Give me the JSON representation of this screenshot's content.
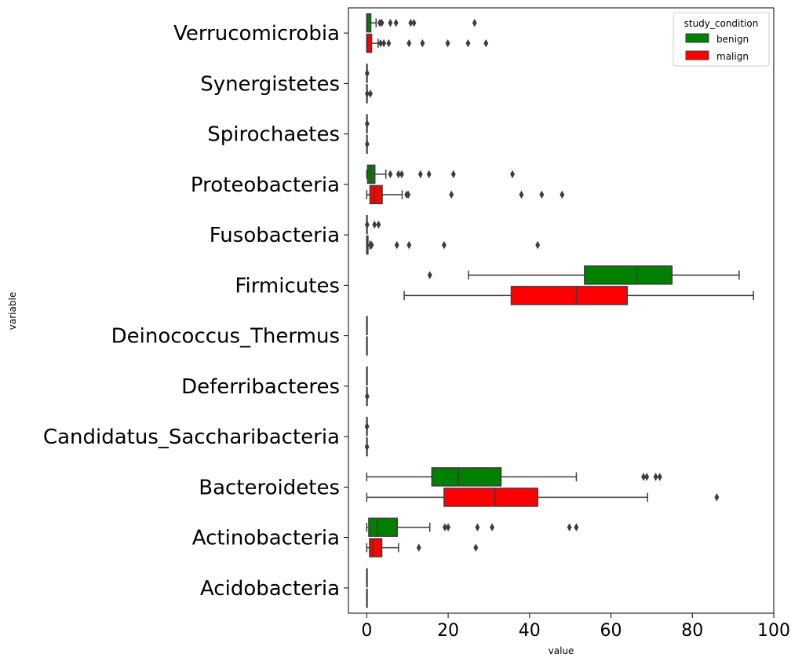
{
  "chart_data": {
    "type": "boxplot",
    "orientation": "horizontal",
    "xlabel": "value",
    "ylabel": "variable",
    "xlim": [
      -4.5,
      100
    ],
    "xticks": [
      0,
      20,
      40,
      60,
      80,
      100
    ],
    "xtick_labels": [
      "0",
      "20",
      "40",
      "60",
      "80",
      "100"
    ],
    "legend": {
      "title": "study_condition",
      "placement": "top-right",
      "entries": [
        {
          "label": "benign",
          "color": "#008000"
        },
        {
          "label": "malign",
          "color": "#ff0000"
        }
      ]
    },
    "categories": [
      "Verrucomicrobia",
      "Synergistetes",
      "Spirochaetes",
      "Proteobacteria",
      "Fusobacteria",
      "Firmicutes",
      "Deinococcus_Thermus",
      "Deferribacteres",
      "Candidatus_Saccharibacteria",
      "Bacteroidetes",
      "Actinobacteria",
      "Acidobacteria"
    ],
    "series": [
      {
        "name": "benign",
        "color": "#008000",
        "boxes": [
          {
            "q1": 0,
            "median": 0.2,
            "q3": 1.0,
            "whislo": 0,
            "whishi": 2.3,
            "fliers": [
              3.2,
              3.7,
              5.8,
              7.2,
              10.8,
              11.6,
              26.5
            ]
          },
          {
            "q1": 0,
            "median": 0,
            "q3": 0,
            "whislo": 0,
            "whishi": 0,
            "fliers": [
              0.1
            ]
          },
          {
            "q1": 0,
            "median": 0,
            "q3": 0,
            "whislo": 0,
            "whishi": 0,
            "fliers": [
              0.1
            ]
          },
          {
            "q1": 0.2,
            "median": 1.0,
            "q3": 2.0,
            "whislo": 0,
            "whishi": 4.7,
            "fliers": [
              5.8,
              7.8,
              8.6,
              13.2,
              15.3,
              21.3,
              35.8
            ]
          },
          {
            "q1": 0,
            "median": 0,
            "q3": 0,
            "whislo": 0,
            "whishi": 0,
            "fliers": [
              0.1,
              1.9,
              2.9
            ]
          },
          {
            "q1": 53.5,
            "median": 66.5,
            "q3": 75.0,
            "whislo": 25.0,
            "whishi": 91.5,
            "fliers": [
              15.5
            ]
          },
          {
            "q1": 0,
            "median": 0,
            "q3": 0,
            "whislo": 0,
            "whishi": 0,
            "fliers": []
          },
          {
            "q1": 0,
            "median": 0,
            "q3": 0,
            "whislo": 0,
            "whishi": 0,
            "fliers": []
          },
          {
            "q1": 0,
            "median": 0,
            "q3": 0,
            "whislo": 0,
            "whishi": 0,
            "fliers": [
              0.05
            ]
          },
          {
            "q1": 16.0,
            "median": 22.5,
            "q3": 33.0,
            "whislo": 0,
            "whishi": 51.5,
            "fliers": [
              68.0,
              68.8,
              71.0,
              72.0
            ]
          },
          {
            "q1": 0.5,
            "median": 2.5,
            "q3": 7.5,
            "whislo": 0,
            "whishi": 15.5,
            "fliers": [
              19.2,
              20.0,
              27.2,
              30.8,
              49.8,
              51.5
            ]
          },
          {
            "q1": 0,
            "median": 0,
            "q3": 0,
            "whislo": 0,
            "whishi": 0,
            "fliers": []
          }
        ]
      },
      {
        "name": "malign",
        "color": "#ff0000",
        "boxes": [
          {
            "q1": 0,
            "median": 0.2,
            "q3": 1.2,
            "whislo": 0,
            "whishi": 2.8,
            "fliers": [
              3.4,
              4.2,
              5.4,
              10.4,
              13.7,
              19.9,
              24.9,
              29.3
            ]
          },
          {
            "q1": 0,
            "median": 0,
            "q3": 0,
            "whislo": 0,
            "whishi": 0,
            "fliers": [
              0.1,
              0.9
            ]
          },
          {
            "q1": 0,
            "median": 0,
            "q3": 0,
            "whislo": 0,
            "whishi": 0,
            "fliers": [
              0.1
            ]
          },
          {
            "q1": 0.8,
            "median": 1.8,
            "q3": 3.8,
            "whislo": 0,
            "whishi": 8.7,
            "fliers": [
              9.8,
              10.2,
              20.8,
              38.0,
              43.0,
              48.0
            ]
          },
          {
            "q1": 0,
            "median": 0,
            "q3": 0.3,
            "whislo": 0,
            "whishi": 0.8,
            "fliers": [
              0.9,
              1.2,
              7.4,
              10.4,
              19.0,
              42.0
            ]
          },
          {
            "q1": 35.5,
            "median": 51.5,
            "q3": 64.0,
            "whislo": 9.2,
            "whishi": 95.0,
            "fliers": []
          },
          {
            "q1": 0,
            "median": 0,
            "q3": 0,
            "whislo": 0,
            "whishi": 0,
            "fliers": []
          },
          {
            "q1": 0,
            "median": 0,
            "q3": 0,
            "whislo": 0,
            "whishi": 0,
            "fliers": [
              0.1
            ]
          },
          {
            "q1": 0,
            "median": 0,
            "q3": 0,
            "whislo": 0,
            "whishi": 0,
            "fliers": [
              0.05
            ]
          },
          {
            "q1": 19.0,
            "median": 31.5,
            "q3": 42.0,
            "whislo": 0,
            "whishi": 69.0,
            "fliers": [
              86.0
            ]
          },
          {
            "q1": 0.7,
            "median": 1.5,
            "q3": 3.7,
            "whislo": 0,
            "whishi": 7.8,
            "fliers": [
              12.8,
              26.8
            ]
          },
          {
            "q1": 0,
            "median": 0,
            "q3": 0,
            "whislo": 0,
            "whishi": 0,
            "fliers": []
          }
        ]
      }
    ]
  }
}
